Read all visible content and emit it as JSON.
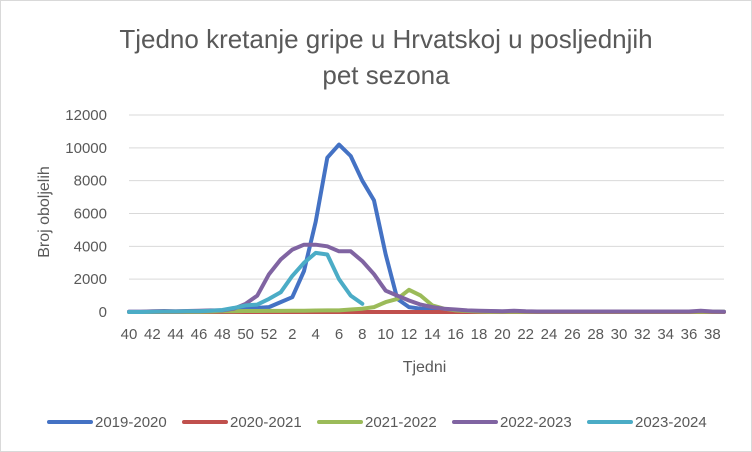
{
  "chart_data": {
    "type": "line",
    "title_line1": "Tjedno kretanje gripe u Hrvatskoj u posljednjih",
    "title_line2": "pet sezona",
    "xlabel": "Tjedni",
    "ylabel": "Broj oboljelih",
    "ylim": [
      0,
      12000
    ],
    "yticks": [
      0,
      2000,
      4000,
      6000,
      8000,
      10000,
      12000
    ],
    "grid": "horizontal",
    "legend_position": "bottom",
    "x_labels": [
      "40",
      "42",
      "44",
      "46",
      "48",
      "50",
      "52",
      "2",
      "4",
      "6",
      "8",
      "10",
      "12",
      "14",
      "16",
      "18",
      "20",
      "22",
      "24",
      "26",
      "28",
      "30",
      "32",
      "34",
      "36",
      "38"
    ],
    "x_weeks": [
      40,
      41,
      42,
      43,
      44,
      45,
      46,
      47,
      48,
      49,
      50,
      51,
      52,
      1,
      2,
      3,
      4,
      5,
      6,
      7,
      8,
      9,
      10,
      11,
      12,
      13,
      14,
      15,
      16,
      17,
      18,
      19,
      20,
      21,
      22,
      23,
      24,
      25,
      26,
      27,
      28,
      29,
      30,
      31,
      32,
      33,
      34,
      35,
      36,
      37,
      38,
      39
    ],
    "series": [
      {
        "name": "2019-2020",
        "color": "#4472c4",
        "values": [
          10,
          10,
          20,
          20,
          20,
          30,
          30,
          50,
          70,
          120,
          200,
          250,
          300,
          600,
          900,
          2500,
          5500,
          9400,
          10200,
          9500,
          8000,
          6800,
          3500,
          800,
          300,
          200,
          150,
          100,
          80,
          60,
          50,
          40,
          30,
          20,
          20,
          20,
          20,
          20,
          20,
          20,
          20,
          20,
          20,
          20,
          20,
          20,
          20,
          20,
          20,
          20,
          20,
          20
        ]
      },
      {
        "name": "2020-2021",
        "color": "#c0504d",
        "values": [
          0,
          0,
          0,
          0,
          0,
          0,
          0,
          0,
          0,
          0,
          0,
          0,
          0,
          0,
          0,
          0,
          0,
          0,
          0,
          0,
          0,
          0,
          0,
          0,
          0,
          0,
          0,
          0,
          0,
          0,
          0,
          0,
          0,
          0,
          0,
          0,
          0,
          0,
          0,
          0,
          0,
          0,
          0,
          0,
          0,
          0,
          0,
          0,
          0,
          0,
          0,
          0
        ]
      },
      {
        "name": "2021-2022",
        "color": "#9bbb59",
        "values": [
          0,
          0,
          10,
          10,
          10,
          20,
          20,
          30,
          40,
          50,
          60,
          60,
          70,
          70,
          80,
          80,
          90,
          100,
          100,
          150,
          200,
          300,
          600,
          800,
          1350,
          1000,
          400,
          200,
          100,
          60,
          30,
          20,
          10,
          10,
          10,
          10,
          10,
          10,
          10,
          10,
          10,
          10,
          10,
          10,
          10,
          10,
          10,
          10,
          10,
          10,
          10,
          10
        ]
      },
      {
        "name": "2022-2023",
        "color": "#8064a2",
        "values": [
          20,
          20,
          40,
          60,
          40,
          60,
          80,
          100,
          100,
          200,
          500,
          1000,
          2300,
          3200,
          3800,
          4100,
          4100,
          4000,
          3700,
          3700,
          3100,
          2300,
          1300,
          1000,
          700,
          450,
          300,
          200,
          150,
          100,
          80,
          60,
          40,
          80,
          40,
          30,
          30,
          30,
          30,
          30,
          30,
          30,
          30,
          30,
          30,
          30,
          30,
          30,
          30,
          80,
          30,
          20
        ]
      },
      {
        "name": "2023-2024",
        "color": "#4bacc6",
        "values": [
          0,
          0,
          20,
          30,
          30,
          40,
          50,
          80,
          120,
          250,
          400,
          450,
          800,
          1200,
          2200,
          3000,
          3600,
          3500,
          2000,
          1000,
          500
        ]
      }
    ]
  }
}
